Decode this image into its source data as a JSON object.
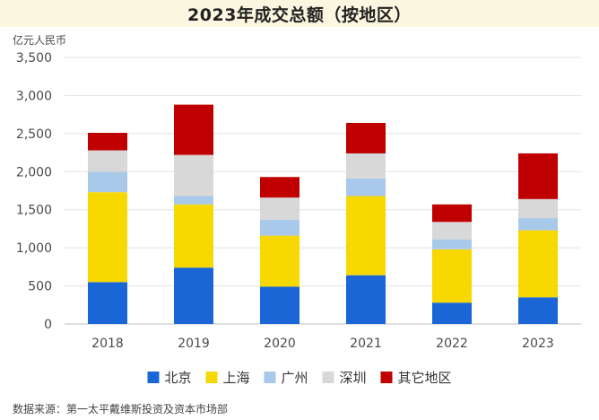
{
  "chart_data": {
    "type": "bar",
    "stacked": true,
    "title": "2023年成交总额（按地区）",
    "ylabel": "亿元人民币",
    "xlabel": "",
    "categories": [
      "2018",
      "2019",
      "2020",
      "2021",
      "2022",
      "2023"
    ],
    "ylim": [
      0,
      3500
    ],
    "yticks": [
      0,
      500,
      1000,
      1500,
      2000,
      2500,
      3000,
      3500
    ],
    "ytick_labels": [
      "0",
      "500",
      "1,000",
      "1,500",
      "2,000",
      "2,500",
      "3,000",
      "3,500"
    ],
    "grid": true,
    "legend_position": "bottom",
    "series": [
      {
        "name": "北京",
        "color": "#1a66d6",
        "values": [
          550,
          740,
          490,
          640,
          280,
          350
        ]
      },
      {
        "name": "上海",
        "color": "#f7d800",
        "values": [
          1180,
          830,
          670,
          1040,
          700,
          880
        ]
      },
      {
        "name": "广州",
        "color": "#a9c9ea",
        "values": [
          270,
          110,
          210,
          230,
          130,
          160
        ]
      },
      {
        "name": "深圳",
        "color": "#d8d8d8",
        "values": [
          280,
          540,
          290,
          330,
          230,
          250
        ]
      },
      {
        "name": "其它地区",
        "color": "#c00000",
        "values": [
          230,
          660,
          270,
          400,
          230,
          600
        ]
      }
    ]
  },
  "source_note": "数据来源：第一太平戴维斯投资及资本市场部"
}
